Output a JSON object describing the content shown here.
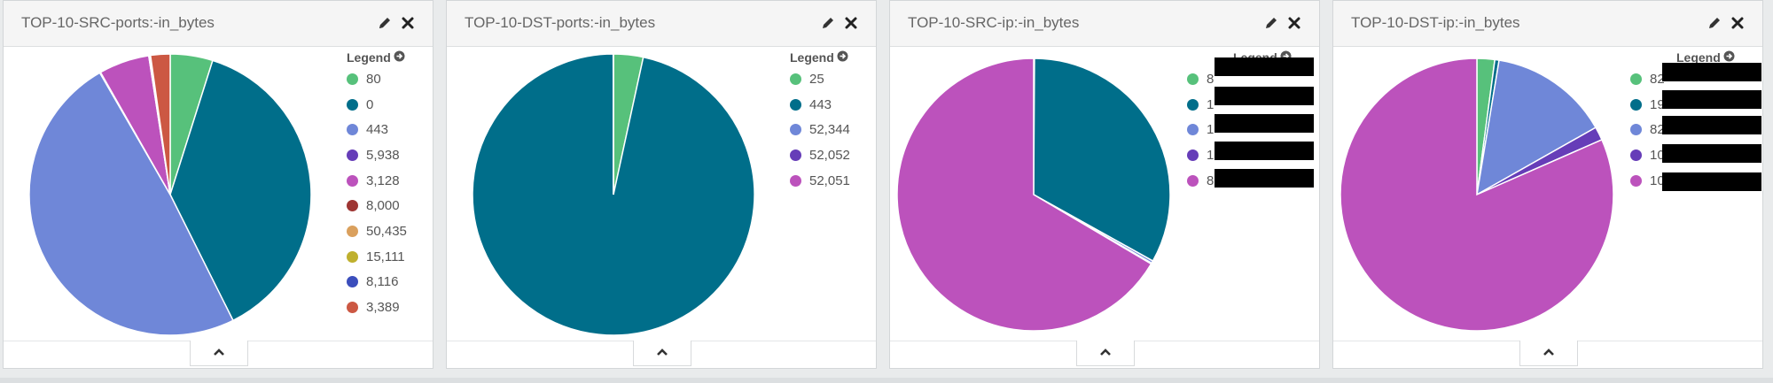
{
  "legend_label": "Legend",
  "panels": [
    {
      "title": "TOP-10-SRC-ports:-in_bytes",
      "chart_data": {
        "type": "pie",
        "title": "TOP-10-SRC-ports:-in_bytes",
        "labels": [
          "80",
          "0",
          "443",
          "5,938",
          "3,128",
          "8,000",
          "50,435",
          "15,111",
          "8,116",
          "3,389"
        ],
        "values": [
          4.8,
          37.2,
          48.3,
          0.1,
          5.7,
          0.05,
          0.05,
          0.05,
          0.05,
          2.2
        ],
        "colors": [
          "#57c17b",
          "#006e8a",
          "#6f87d8",
          "#663db8",
          "#bc52bc",
          "#9e3533",
          "#daa05d",
          "#bfb02e",
          "#3b4ebc",
          "#cc5843"
        ],
        "legend": "right"
      }
    },
    {
      "title": "TOP-10-DST-ports:-in_bytes",
      "chart_data": {
        "type": "pie",
        "title": "TOP-10-DST-ports:-in_bytes",
        "labels": [
          "25",
          "443",
          "52,344",
          "52,052",
          "52,051"
        ],
        "values": [
          3.4,
          96.6,
          0.01,
          0.01,
          0.01
        ],
        "colors": [
          "#57c17b",
          "#006e8a",
          "#6f87d8",
          "#663db8",
          "#bc52bc"
        ],
        "legend": "right"
      }
    },
    {
      "title": "TOP-10-SRC-ip:-in_bytes",
      "chart_data": {
        "type": "pie",
        "title": "TOP-10-SRC-ip:-in_bytes",
        "labels": [
          "8",
          "1",
          "1",
          "1",
          "8"
        ],
        "values": [
          0.1,
          33.0,
          0.3,
          0.1,
          66.5
        ],
        "colors": [
          "#57c17b",
          "#006e8a",
          "#6f87d8",
          "#663db8",
          "#bc52bc"
        ],
        "legend": "right",
        "labels_redacted": true
      }
    },
    {
      "title": "TOP-10-DST-ip:-in_bytes",
      "chart_data": {
        "type": "pie",
        "title": "TOP-10-DST-ip:-in_bytes",
        "labels": [
          "82",
          "19",
          "82",
          "10",
          "10"
        ],
        "values": [
          2.1,
          0.5,
          14.2,
          1.6,
          81.6
        ],
        "colors": [
          "#57c17b",
          "#006e8a",
          "#6f87d8",
          "#663db8",
          "#bc52bc"
        ],
        "legend": "right",
        "labels_redacted": true
      }
    }
  ]
}
